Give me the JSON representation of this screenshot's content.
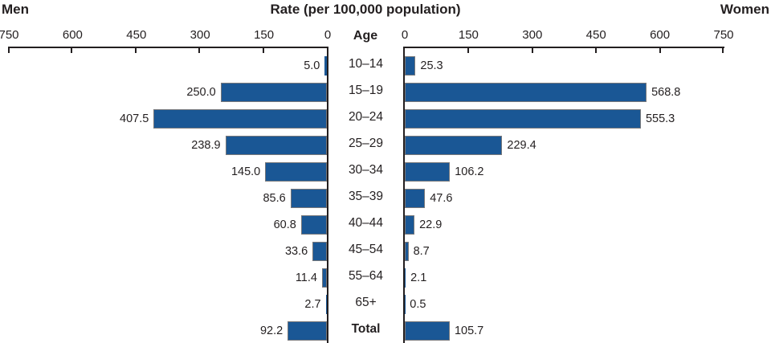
{
  "header": {
    "left": "Men",
    "title": "Rate (per 100,000 population)",
    "right": "Women",
    "age_label": "Age"
  },
  "axis": {
    "max": 750,
    "tick_values": [
      0,
      150,
      300,
      450,
      600,
      750
    ],
    "ticks_men_labels": [
      "750",
      "600",
      "450",
      "300",
      "150",
      "0"
    ],
    "ticks_women_labels": [
      "0",
      "150",
      "300",
      "450",
      "600",
      "750"
    ]
  },
  "chart_data": {
    "type": "bar",
    "orientation": "horizontal-bilateral",
    "title": "Rate (per 100,000 population)",
    "xlabel": "Rate (per 100,000 population)",
    "ylabel": "Age",
    "xlim": [
      0,
      750
    ],
    "grid": false,
    "categories": [
      "10–14",
      "15–19",
      "20–24",
      "25–29",
      "30–34",
      "35–39",
      "40–44",
      "45–54",
      "55–64",
      "65+",
      "Total"
    ],
    "series": [
      {
        "name": "Men",
        "side": "left",
        "values": [
          5.0,
          250.0,
          407.5,
          238.9,
          145.0,
          85.6,
          60.8,
          33.6,
          11.4,
          2.7,
          92.2
        ]
      },
      {
        "name": "Women",
        "side": "right",
        "values": [
          25.3,
          568.8,
          555.3,
          229.4,
          106.2,
          47.6,
          22.9,
          8.7,
          2.1,
          0.5,
          105.7
        ]
      }
    ],
    "value_labels": {
      "men": [
        "5.0",
        "250.0",
        "407.5",
        "238.9",
        "145.0",
        "85.6",
        "60.8",
        "33.6",
        "11.4",
        "2.7",
        "92.2"
      ],
      "women": [
        "25.3",
        "568.8",
        "555.3",
        "229.4",
        "106.2",
        "47.6",
        "22.9",
        "8.7",
        "2.1",
        "0.5",
        "105.7"
      ]
    }
  },
  "colors": {
    "bar": "#1a5795",
    "bar_border": "#77787b",
    "axis": "#231f20",
    "text": "#231f20"
  }
}
